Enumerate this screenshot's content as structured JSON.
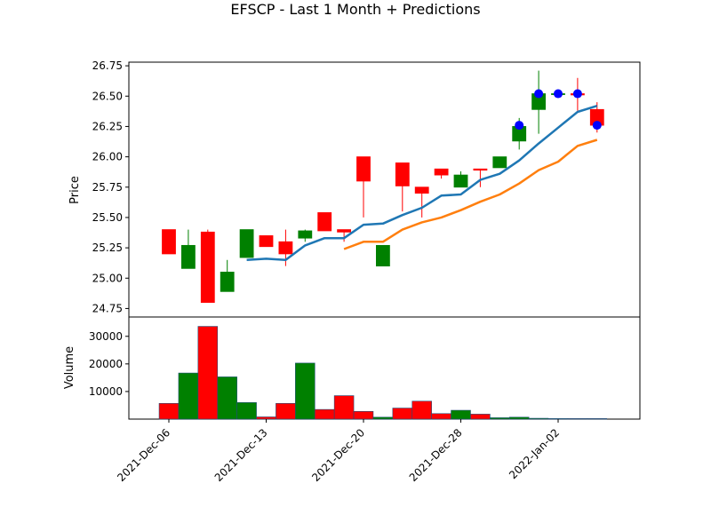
{
  "chart_data": {
    "type": "candlestick",
    "title": "EFSCP - Last 1 Month + Predictions",
    "price_panel": {
      "ylabel": "Price",
      "ylim": [
        24.68,
        26.78
      ],
      "yticks": [
        "24.75",
        "25.00",
        "25.25",
        "25.50",
        "25.75",
        "26.00",
        "26.25",
        "26.50",
        "26.75"
      ],
      "candles": [
        {
          "i": 0,
          "open": 25.4,
          "close": 25.2,
          "high": 25.4,
          "low": 25.2
        },
        {
          "i": 1,
          "open": 25.08,
          "close": 25.27,
          "high": 25.4,
          "low": 25.08
        },
        {
          "i": 2,
          "open": 25.38,
          "close": 24.8,
          "high": 25.4,
          "low": 24.8
        },
        {
          "i": 3,
          "open": 24.89,
          "close": 25.05,
          "high": 25.15,
          "low": 24.89
        },
        {
          "i": 4,
          "open": 25.17,
          "close": 25.4,
          "high": 25.4,
          "low": 25.17
        },
        {
          "i": 5,
          "open": 25.35,
          "close": 25.26,
          "high": 25.35,
          "low": 25.26
        },
        {
          "i": 6,
          "open": 25.3,
          "close": 25.2,
          "high": 25.4,
          "low": 25.1
        },
        {
          "i": 7,
          "open": 25.33,
          "close": 25.39,
          "high": 25.4,
          "low": 25.3
        },
        {
          "i": 8,
          "open": 25.54,
          "close": 25.39,
          "high": 25.54,
          "low": 25.39
        },
        {
          "i": 9,
          "open": 25.4,
          "close": 25.38,
          "high": 25.4,
          "low": 25.3
        },
        {
          "i": 10,
          "open": 26.0,
          "close": 25.8,
          "high": 26.0,
          "low": 25.5
        },
        {
          "i": 11,
          "open": 25.1,
          "close": 25.27,
          "high": 25.27,
          "low": 25.1
        },
        {
          "i": 12,
          "open": 25.95,
          "close": 25.76,
          "high": 25.95,
          "low": 25.55
        },
        {
          "i": 13,
          "open": 25.75,
          "close": 25.7,
          "high": 25.75,
          "low": 25.5
        },
        {
          "i": 14,
          "open": 25.9,
          "close": 25.85,
          "high": 25.9,
          "low": 25.82
        },
        {
          "i": 15,
          "open": 25.75,
          "close": 25.85,
          "high": 25.88,
          "low": 25.75
        },
        {
          "i": 16,
          "open": 25.9,
          "close": 25.89,
          "high": 25.9,
          "low": 25.75
        },
        {
          "i": 17,
          "open": 25.91,
          "close": 26.0,
          "high": 26.0,
          "low": 25.91
        },
        {
          "i": 18,
          "open": 26.13,
          "close": 26.25,
          "high": 26.32,
          "low": 26.06
        },
        {
          "i": 19,
          "open": 26.39,
          "close": 26.52,
          "high": 26.71,
          "low": 26.19
        },
        {
          "i": 20,
          "open": 26.52,
          "close": 26.52,
          "high": 26.52,
          "low": 26.52
        },
        {
          "i": 21,
          "open": 26.52,
          "close": 26.51,
          "high": 26.65,
          "low": 26.38
        },
        {
          "i": 22,
          "open": 26.39,
          "close": 26.26,
          "high": 26.45,
          "low": 26.2
        }
      ],
      "moving_averages": [
        {
          "color": "#1f77b4",
          "start": 4,
          "values": [
            25.15,
            25.16,
            25.15,
            25.27,
            25.33,
            25.33,
            25.44,
            25.45,
            25.52,
            25.58,
            25.68,
            25.69,
            25.81,
            25.86,
            25.97,
            26.11,
            26.24,
            26.37,
            26.42
          ]
        },
        {
          "color": "#ff7f0e",
          "start": 9,
          "values": [
            25.24,
            25.3,
            25.3,
            25.4,
            25.46,
            25.5,
            25.56,
            25.63,
            25.69,
            25.78,
            25.89,
            25.96,
            26.09,
            26.14
          ]
        }
      ],
      "prediction_points": [
        {
          "i": 18,
          "value": 26.26
        },
        {
          "i": 19,
          "value": 26.52
        },
        {
          "i": 20,
          "value": 26.52
        },
        {
          "i": 21,
          "value": 26.52
        },
        {
          "i": 22,
          "value": 26.26
        }
      ]
    },
    "volume_panel": {
      "ylabel": "Volume",
      "ylim": [
        0,
        37000
      ],
      "yticks": [
        "10000",
        "20000",
        "30000"
      ],
      "bars": [
        {
          "i": 0,
          "value": 5700,
          "dir": "down"
        },
        {
          "i": 1,
          "value": 16700,
          "dir": "up"
        },
        {
          "i": 2,
          "value": 33600,
          "dir": "down"
        },
        {
          "i": 3,
          "value": 15300,
          "dir": "up"
        },
        {
          "i": 4,
          "value": 6000,
          "dir": "up"
        },
        {
          "i": 5,
          "value": 800,
          "dir": "down"
        },
        {
          "i": 6,
          "value": 5700,
          "dir": "down"
        },
        {
          "i": 7,
          "value": 20300,
          "dir": "up"
        },
        {
          "i": 8,
          "value": 3500,
          "dir": "down"
        },
        {
          "i": 9,
          "value": 8500,
          "dir": "down"
        },
        {
          "i": 10,
          "value": 2800,
          "dir": "down"
        },
        {
          "i": 11,
          "value": 700,
          "dir": "up"
        },
        {
          "i": 12,
          "value": 4000,
          "dir": "down"
        },
        {
          "i": 13,
          "value": 6500,
          "dir": "down"
        },
        {
          "i": 14,
          "value": 2000,
          "dir": "down"
        },
        {
          "i": 15,
          "value": 3200,
          "dir": "up"
        },
        {
          "i": 16,
          "value": 1800,
          "dir": "down"
        },
        {
          "i": 17,
          "value": 500,
          "dir": "up"
        },
        {
          "i": 18,
          "value": 700,
          "dir": "up"
        },
        {
          "i": 19,
          "value": 300,
          "dir": "up"
        },
        {
          "i": 20,
          "value": 200,
          "dir": "up"
        },
        {
          "i": 21,
          "value": 200,
          "dir": "down"
        },
        {
          "i": 22,
          "value": 200,
          "dir": "down"
        }
      ]
    },
    "x_axis": {
      "ticks": [
        {
          "i": 0,
          "label": "2021-Dec-06"
        },
        {
          "i": 5,
          "label": "2021-Dec-13"
        },
        {
          "i": 10,
          "label": "2021-Dec-20"
        },
        {
          "i": 15,
          "label": "2021-Dec-28"
        },
        {
          "i": 20,
          "label": "2022-Jan-02"
        }
      ]
    },
    "colors": {
      "up": "#008000",
      "down": "#ff0000",
      "prediction": "#0000ff"
    },
    "grid": false
  }
}
